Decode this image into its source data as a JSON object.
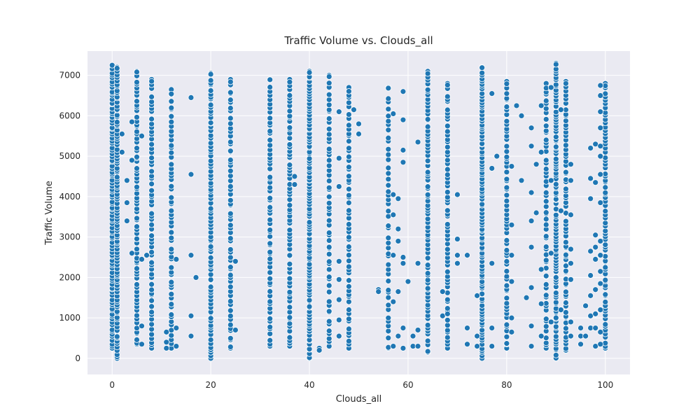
{
  "chart_data": {
    "type": "scatter",
    "title": "Traffic Volume vs. Clouds_all",
    "xlabel": "Clouds_all",
    "ylabel": "Traffic Volume",
    "xlim": [
      -5,
      105
    ],
    "ylim": [
      -400,
      7600
    ],
    "xticks": [
      0,
      20,
      40,
      60,
      80,
      100
    ],
    "yticks": [
      0,
      1000,
      2000,
      3000,
      4000,
      5000,
      6000,
      7000
    ],
    "grid": true,
    "legend": "none",
    "colors": {
      "point": "#1f77b4",
      "point_edge": "#ffffff",
      "background": "#eaeaf2",
      "grid": "#ffffff"
    },
    "columns": [
      {
        "x": 0,
        "ymin": 250,
        "ymax": 7250,
        "n": 95
      },
      {
        "x": 1,
        "ymin": 0,
        "ymax": 7200,
        "n": 95
      },
      {
        "x": 5,
        "ymin": 350,
        "ymax": 7100,
        "n": 70
      },
      {
        "x": 8,
        "ymin": 250,
        "ymax": 6900,
        "n": 60
      },
      {
        "x": 12,
        "ymin": 250,
        "ymax": 6650,
        "n": 55
      },
      {
        "x": 20,
        "ymin": 0,
        "ymax": 7050,
        "n": 80
      },
      {
        "x": 24,
        "ymin": 250,
        "ymax": 6900,
        "n": 60
      },
      {
        "x": 32,
        "ymin": 300,
        "ymax": 6900,
        "n": 60
      },
      {
        "x": 36,
        "ymin": 300,
        "ymax": 6900,
        "n": 65
      },
      {
        "x": 40,
        "ymin": 0,
        "ymax": 7100,
        "n": 95
      },
      {
        "x": 44,
        "ymin": 300,
        "ymax": 7000,
        "n": 55
      },
      {
        "x": 48,
        "ymin": 250,
        "ymax": 6700,
        "n": 55
      },
      {
        "x": 56,
        "ymin": 250,
        "ymax": 6700,
        "n": 45
      },
      {
        "x": 64,
        "ymin": 150,
        "ymax": 7100,
        "n": 75
      },
      {
        "x": 68,
        "ymin": 250,
        "ymax": 6800,
        "n": 60
      },
      {
        "x": 75,
        "ymin": 0,
        "ymax": 7200,
        "n": 95
      },
      {
        "x": 80,
        "ymin": 250,
        "ymax": 6850,
        "n": 60
      },
      {
        "x": 88,
        "ymin": 250,
        "ymax": 6800,
        "n": 55
      },
      {
        "x": 90,
        "ymin": 0,
        "ymax": 7300,
        "n": 95
      },
      {
        "x": 92,
        "ymin": 200,
        "ymax": 6850,
        "n": 65
      },
      {
        "x": 100,
        "ymin": 250,
        "ymax": 6800,
        "n": 70
      }
    ],
    "points": [
      [
        2,
        5550
      ],
      [
        2,
        5100
      ],
      [
        3,
        4400
      ],
      [
        3,
        3850
      ],
      [
        3,
        3400
      ],
      [
        4,
        5850
      ],
      [
        4,
        4900
      ],
      [
        4,
        2600
      ],
      [
        6,
        5500
      ],
      [
        6,
        2450
      ],
      [
        6,
        800
      ],
      [
        6,
        350
      ],
      [
        7,
        2550
      ],
      [
        11,
        650
      ],
      [
        11,
        400
      ],
      [
        11,
        250
      ],
      [
        13,
        2450
      ],
      [
        13,
        750
      ],
      [
        13,
        300
      ],
      [
        16,
        6450
      ],
      [
        16,
        4550
      ],
      [
        16,
        2550
      ],
      [
        16,
        1050
      ],
      [
        16,
        550
      ],
      [
        17,
        2000
      ],
      [
        25,
        2400
      ],
      [
        25,
        700
      ],
      [
        37,
        4500
      ],
      [
        37,
        4300
      ],
      [
        42,
        250
      ],
      [
        42,
        200
      ],
      [
        46,
        6100
      ],
      [
        46,
        4950
      ],
      [
        46,
        4250
      ],
      [
        46,
        2400
      ],
      [
        46,
        1950
      ],
      [
        46,
        1450
      ],
      [
        46,
        950
      ],
      [
        46,
        550
      ],
      [
        49,
        6150
      ],
      [
        50,
        5800
      ],
      [
        50,
        5550
      ],
      [
        54,
        1700
      ],
      [
        54,
        1650
      ],
      [
        57,
        6050
      ],
      [
        57,
        4050
      ],
      [
        57,
        3550
      ],
      [
        57,
        2550
      ],
      [
        57,
        1400
      ],
      [
        57,
        300
      ],
      [
        58,
        3950
      ],
      [
        58,
        3200
      ],
      [
        58,
        2900
      ],
      [
        58,
        1650
      ],
      [
        58,
        550
      ],
      [
        59,
        6600
      ],
      [
        59,
        5900
      ],
      [
        59,
        5150
      ],
      [
        59,
        4850
      ],
      [
        59,
        2500
      ],
      [
        59,
        2350
      ],
      [
        59,
        750
      ],
      [
        59,
        250
      ],
      [
        60,
        1900
      ],
      [
        61,
        550
      ],
      [
        61,
        300
      ],
      [
        62,
        5350
      ],
      [
        62,
        2350
      ],
      [
        62,
        700
      ],
      [
        62,
        300
      ],
      [
        67,
        1650
      ],
      [
        67,
        1050
      ],
      [
        68,
        1100
      ],
      [
        70,
        4050
      ],
      [
        70,
        2950
      ],
      [
        70,
        2550
      ],
      [
        70,
        2350
      ],
      [
        72,
        2550
      ],
      [
        72,
        750
      ],
      [
        72,
        350
      ],
      [
        74,
        1550
      ],
      [
        74,
        550
      ],
      [
        74,
        300
      ],
      [
        77,
        6550
      ],
      [
        77,
        4700
      ],
      [
        77,
        2350
      ],
      [
        77,
        750
      ],
      [
        77,
        300
      ],
      [
        78,
        5000
      ],
      [
        81,
        4750
      ],
      [
        81,
        3300
      ],
      [
        81,
        2550
      ],
      [
        81,
        1900
      ],
      [
        81,
        1000
      ],
      [
        81,
        650
      ],
      [
        82,
        6250
      ],
      [
        83,
        6000
      ],
      [
        83,
        4400
      ],
      [
        84,
        1500
      ],
      [
        85,
        5700
      ],
      [
        85,
        5250
      ],
      [
        85,
        4100
      ],
      [
        85,
        3400
      ],
      [
        85,
        2750
      ],
      [
        85,
        1750
      ],
      [
        85,
        800
      ],
      [
        85,
        300
      ],
      [
        86,
        4800
      ],
      [
        86,
        3600
      ],
      [
        87,
        6250
      ],
      [
        87,
        5100
      ],
      [
        87,
        2200
      ],
      [
        87,
        1350
      ],
      [
        87,
        550
      ],
      [
        89,
        6700
      ],
      [
        89,
        4400
      ],
      [
        89,
        2600
      ],
      [
        89,
        900
      ],
      [
        91,
        6150
      ],
      [
        91,
        3650
      ],
      [
        91,
        1200
      ],
      [
        93,
        4800
      ],
      [
        93,
        4400
      ],
      [
        93,
        3550
      ],
      [
        93,
        2700
      ],
      [
        93,
        2350
      ],
      [
        93,
        1950
      ],
      [
        93,
        900
      ],
      [
        93,
        550
      ],
      [
        95,
        750
      ],
      [
        95,
        550
      ],
      [
        95,
        350
      ],
      [
        96,
        1300
      ],
      [
        96,
        550
      ],
      [
        97,
        4450
      ],
      [
        97,
        2650
      ],
      [
        97,
        2050
      ],
      [
        97,
        1550
      ],
      [
        97,
        1050
      ],
      [
        97,
        750
      ],
      [
        98,
        5300
      ],
      [
        98,
        4350
      ],
      [
        98,
        3050
      ],
      [
        98,
        2750
      ],
      [
        98,
        2450
      ],
      [
        98,
        1700
      ],
      [
        98,
        1100
      ],
      [
        98,
        750
      ],
      [
        98,
        300
      ],
      [
        99,
        6750
      ],
      [
        99,
        6500
      ],
      [
        99,
        6100
      ],
      [
        99,
        5700
      ],
      [
        99,
        5250
      ],
      [
        99,
        5000
      ],
      [
        99,
        4550
      ],
      [
        99,
        3850
      ],
      [
        99,
        2900
      ],
      [
        99,
        2550
      ],
      [
        99,
        2150
      ],
      [
        99,
        1850
      ],
      [
        99,
        1200
      ],
      [
        99,
        650
      ],
      [
        99,
        350
      ],
      [
        97,
        5200
      ],
      [
        97,
        3950
      ]
    ]
  }
}
